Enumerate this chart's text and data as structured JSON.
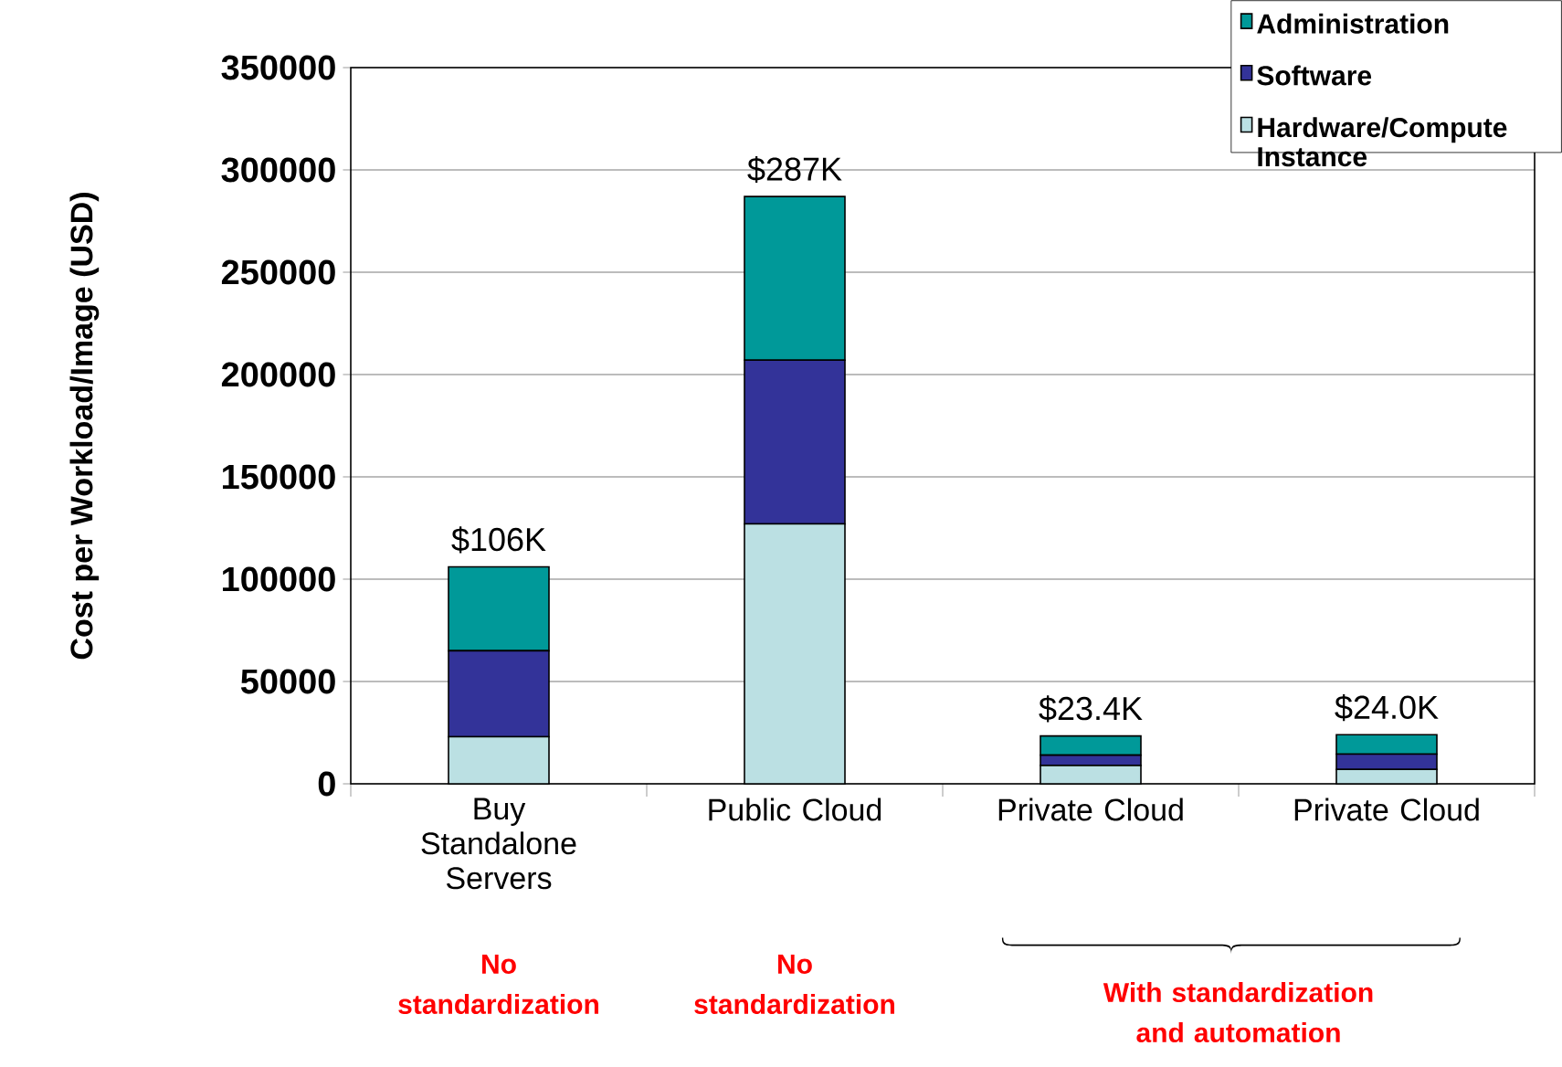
{
  "chart_data": {
    "type": "bar",
    "stacked": true,
    "ylabel": "Cost per Workload/Image (USD)",
    "categories": [
      "Buy Standalone Servers",
      "Public Cloud",
      "Private Cloud",
      "Private Cloud"
    ],
    "series": [
      {
        "name": "Hardware/Compute Instance",
        "color": "#bbe0e3",
        "values": [
          23000,
          127000,
          9000,
          7000
        ]
      },
      {
        "name": "Software",
        "color": "#333399",
        "values": [
          42000,
          80000,
          5000,
          7500
        ]
      },
      {
        "name": "Administration",
        "color": "#009999",
        "values": [
          41000,
          80000,
          9400,
          9500
        ]
      }
    ],
    "totals": [
      "$106K",
      "$287K",
      "$23.4K",
      "$24.0K"
    ],
    "ylim": [
      0,
      350000
    ],
    "yticks": [
      0,
      50000,
      100000,
      150000,
      200000,
      250000,
      300000,
      350000
    ],
    "grid": "y",
    "legend": "top right",
    "annotations": [
      "No standardization",
      "No standardization",
      "With  standardization and automation"
    ]
  }
}
